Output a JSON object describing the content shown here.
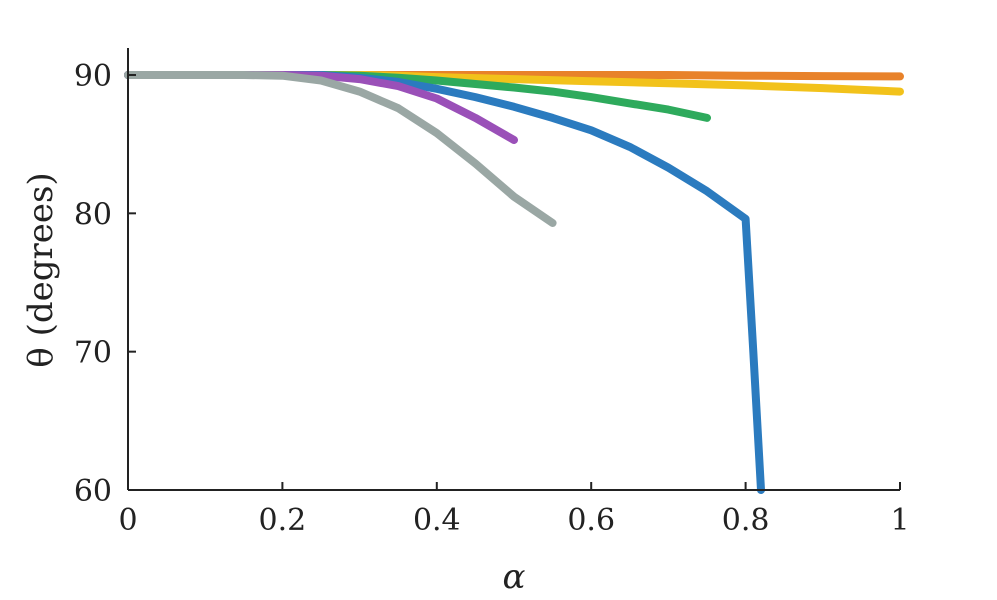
{
  "chart_data": {
    "type": "line",
    "title": "",
    "xlabel": "α",
    "ylabel": "θ (degrees)",
    "xlim": [
      0,
      1
    ],
    "ylim": [
      60,
      90
    ],
    "xticks": [
      0,
      0.2,
      0.4,
      0.6,
      0.8,
      1
    ],
    "xtick_labels": [
      "0",
      "0.2",
      "0.4",
      "0.6",
      "0.8",
      "1"
    ],
    "yticks": [
      60,
      70,
      80,
      90
    ],
    "ytick_labels": [
      "60",
      "70",
      "80",
      "90"
    ],
    "grid": false,
    "legend": "none",
    "series": [
      {
        "color": "#E8822A",
        "x": [
          0,
          0.1,
          0.2,
          0.3,
          0.4,
          0.5,
          0.6,
          0.7,
          0.8,
          0.9,
          1.0
        ],
        "y": [
          90,
          90,
          90,
          90,
          90,
          90,
          90,
          90,
          89.95,
          89.92,
          89.9
        ]
      },
      {
        "color": "#F2C21B",
        "x": [
          0,
          0.1,
          0.2,
          0.3,
          0.35,
          0.4,
          0.5,
          0.6,
          0.7,
          0.8,
          0.9,
          1.0
        ],
        "y": [
          90,
          90,
          90,
          90,
          89.95,
          89.85,
          89.7,
          89.55,
          89.4,
          89.25,
          89.05,
          88.8
        ]
      },
      {
        "color": "#2EAA5C",
        "x": [
          0,
          0.1,
          0.2,
          0.25,
          0.3,
          0.35,
          0.4,
          0.45,
          0.5,
          0.55,
          0.6,
          0.65,
          0.7,
          0.75
        ],
        "y": [
          90,
          90,
          90,
          90,
          89.95,
          89.8,
          89.6,
          89.35,
          89.1,
          88.8,
          88.4,
          87.95,
          87.5,
          86.9
        ]
      },
      {
        "color": "#2B7BBF",
        "x": [
          0,
          0.1,
          0.2,
          0.25,
          0.3,
          0.35,
          0.4,
          0.45,
          0.5,
          0.55,
          0.6,
          0.65,
          0.7,
          0.75,
          0.8,
          0.81,
          0.82
        ],
        "y": [
          90,
          90,
          90,
          90,
          89.8,
          89.5,
          89.0,
          88.4,
          87.7,
          86.9,
          86.0,
          84.8,
          83.3,
          81.6,
          79.6,
          70.0,
          60.0
        ]
      },
      {
        "color": "#9A50B8",
        "x": [
          0,
          0.1,
          0.2,
          0.25,
          0.3,
          0.35,
          0.4,
          0.45,
          0.5
        ],
        "y": [
          90,
          90,
          90,
          89.95,
          89.7,
          89.2,
          88.3,
          86.9,
          85.3
        ]
      },
      {
        "color": "#9AA7A4",
        "x": [
          0,
          0.05,
          0.1,
          0.15,
          0.2,
          0.25,
          0.3,
          0.35,
          0.4,
          0.45,
          0.5,
          0.55
        ],
        "y": [
          90,
          90,
          90,
          90,
          89.95,
          89.6,
          88.8,
          87.6,
          85.8,
          83.6,
          81.2,
          79.3
        ]
      }
    ]
  }
}
